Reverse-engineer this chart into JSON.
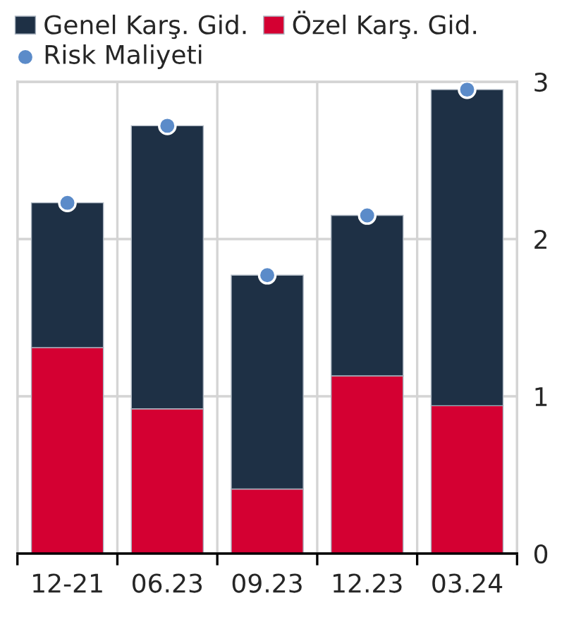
{
  "chart_data": {
    "type": "bar",
    "stacked": true,
    "categories": [
      "12-21",
      "06.23",
      "09.23",
      "12.23",
      "03.24"
    ],
    "series": [
      {
        "name": "Özel Karş. Gid.",
        "color": "#d40032",
        "values": [
          1.31,
          0.92,
          0.41,
          1.13,
          0.94
        ]
      },
      {
        "name": "Genel Karş. Gid.",
        "color": "#1e3045",
        "values": [
          0.92,
          1.8,
          1.36,
          1.02,
          2.01
        ]
      },
      {
        "name": "Risk Maliyeti",
        "type": "scatter",
        "color": "#5b8bc9",
        "values": [
          2.23,
          2.72,
          1.77,
          2.15,
          2.95
        ]
      }
    ],
    "ylim": [
      0,
      3
    ],
    "yticks": [
      0,
      1,
      2,
      3
    ],
    "grid": true,
    "legend": "top left",
    "marker": "circle"
  }
}
